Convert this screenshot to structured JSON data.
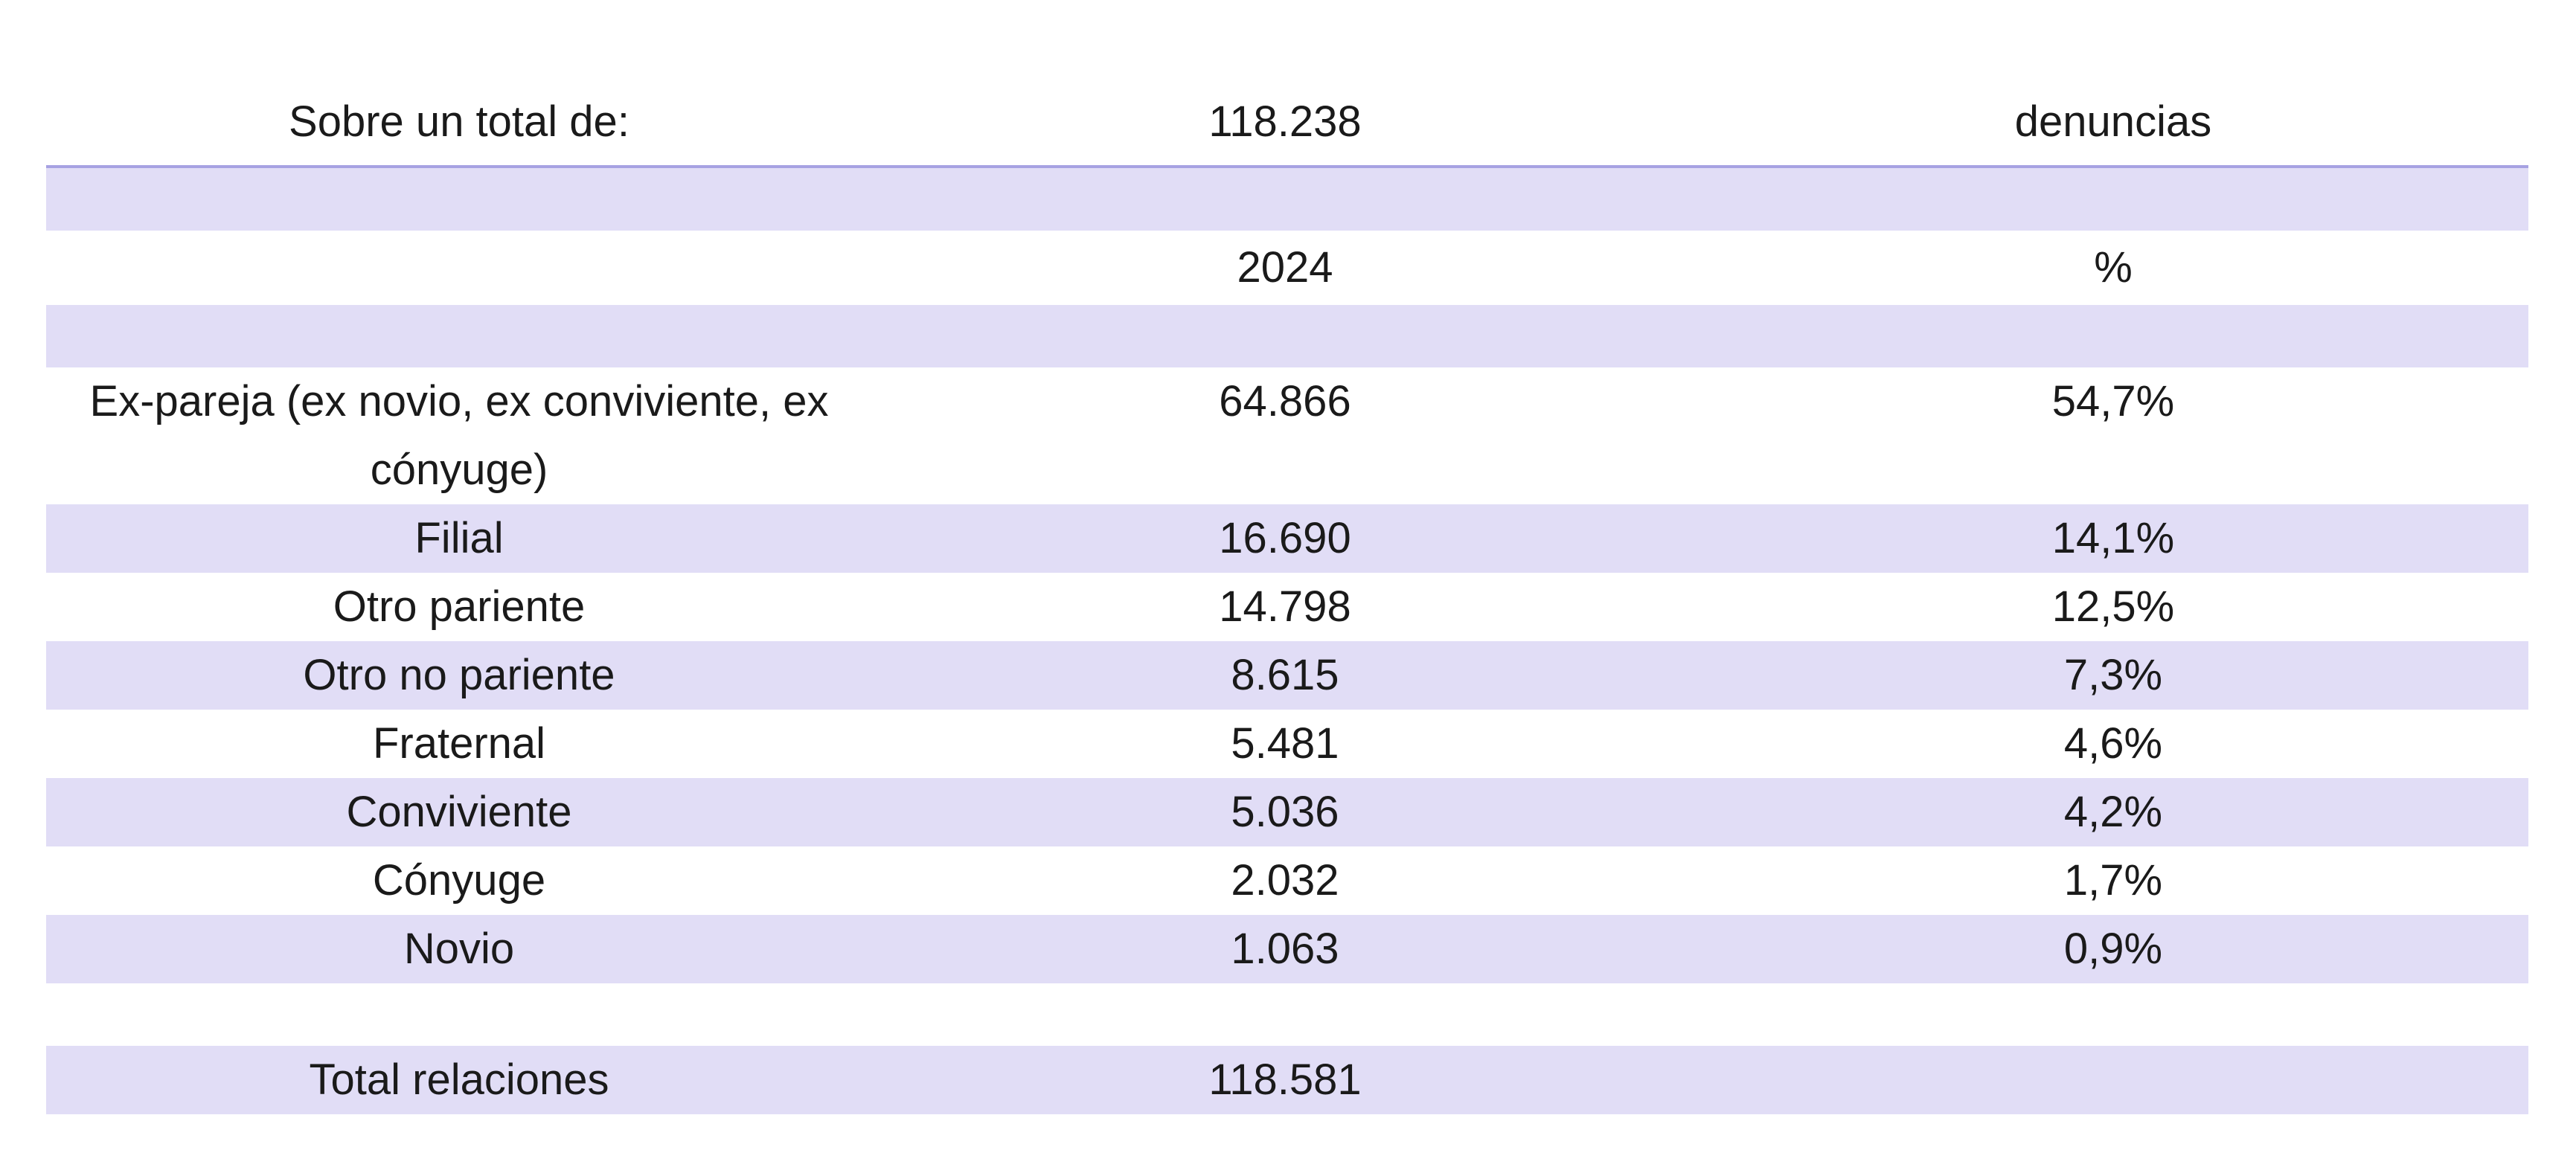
{
  "summary": {
    "label": "Sobre un total de:",
    "value": "118.238",
    "unit": "denuncias"
  },
  "header": {
    "year": "2024",
    "percent": "%"
  },
  "rows": [
    {
      "label": "Ex-pareja (ex novio, ex conviviente, ex cónyuge)",
      "value": "64.866",
      "percent": "54,7%"
    },
    {
      "label": "Filial",
      "value": "16.690",
      "percent": "14,1%"
    },
    {
      "label": "Otro pariente",
      "value": "14.798",
      "percent": "12,5%"
    },
    {
      "label": "Otro no pariente",
      "value": "8.615",
      "percent": "7,3%"
    },
    {
      "label": "Fraternal",
      "value": "5.481",
      "percent": "4,6%"
    },
    {
      "label": "Conviviente",
      "value": "5.036",
      "percent": "4,2%"
    },
    {
      "label": "Cónyuge",
      "value": "2.032",
      "percent": "1,7%"
    },
    {
      "label": "Novio",
      "value": "1.063",
      "percent": "0,9%"
    }
  ],
  "total": {
    "label": "Total relaciones",
    "value": "118.581"
  },
  "colors": {
    "band": "#e1ddf6",
    "divider": "#a7a2e2"
  }
}
